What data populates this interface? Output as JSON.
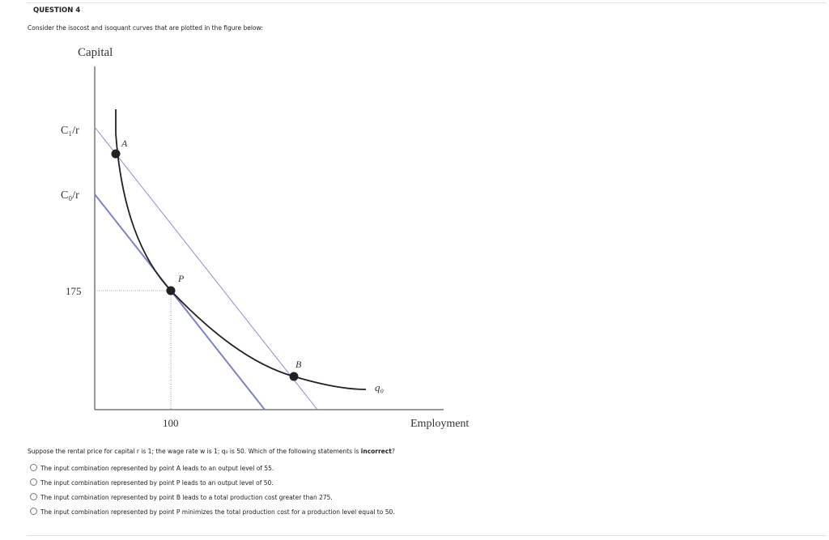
{
  "header": {
    "title": "QUESTION 4",
    "prompt": "Consider the isocost and isoquant curves that are plotted in the figure below:"
  },
  "figure": {
    "y_axis_label": "Capital",
    "x_axis_label": "Employment",
    "y_labels": [
      "C₁/r",
      "C₀/r",
      "175"
    ],
    "x_labels": [
      "100"
    ],
    "points": [
      "A",
      "P",
      "B"
    ],
    "curve_label": "q₀"
  },
  "question": {
    "prefix": "Suppose the rental price for capital r is 1; the wage rate w is 1; q₀ is 50. Which of the following statements is ",
    "emphasis": "incorrect",
    "suffix": "?"
  },
  "options": [
    "The input combination represented by point A leads to an output level of 55.",
    "The input combination represented by point P leads to an output level of 50.",
    "The input combination represented by point B leads to a total production cost greater than 275.",
    "The input combination represented by point P minimizes the total production cost for a production level equal to 50."
  ]
}
